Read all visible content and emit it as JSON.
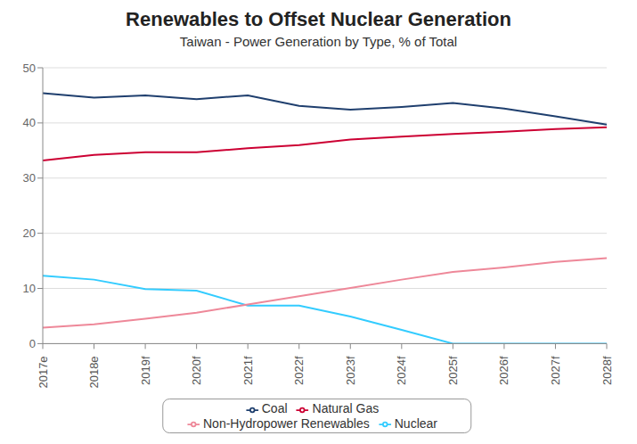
{
  "chart_data": {
    "type": "line",
    "title": "Renewables to Offset Nuclear Generation",
    "subtitle": "Taiwan - Power Generation by Type, % of Total",
    "categories": [
      "2017e",
      "2018e",
      "2019f",
      "2020f",
      "2021f",
      "2022f",
      "2023f",
      "2024f",
      "2025f",
      "2026f",
      "2027f",
      "2028f"
    ],
    "series": [
      {
        "name": "Coal",
        "color": "#1f3f6e",
        "values": [
          45.4,
          44.6,
          45.0,
          44.3,
          45.0,
          43.1,
          42.4,
          42.9,
          43.6,
          42.6,
          41.2,
          39.7
        ]
      },
      {
        "name": "Natural Gas",
        "color": "#cc0033",
        "values": [
          33.2,
          34.2,
          34.7,
          34.7,
          35.4,
          36.0,
          37.0,
          37.5,
          38.0,
          38.4,
          38.9,
          39.2
        ]
      },
      {
        "name": "Nuclear",
        "color": "#33ccff",
        "values": [
          12.3,
          11.6,
          9.9,
          9.6,
          6.9,
          6.9,
          4.9,
          2.5,
          0,
          0,
          0,
          0
        ]
      },
      {
        "name": "Non-Hydropower Renewables",
        "color": "#ee8899",
        "values": [
          2.9,
          3.5,
          4.5,
          5.6,
          7.1,
          8.6,
          10.1,
          11.6,
          13.0,
          13.8,
          14.8,
          15.5
        ]
      }
    ],
    "ylim": [
      0,
      50
    ],
    "yticks": [
      0,
      10,
      20,
      30,
      40,
      50
    ],
    "grid": true,
    "legend": "bottom"
  }
}
